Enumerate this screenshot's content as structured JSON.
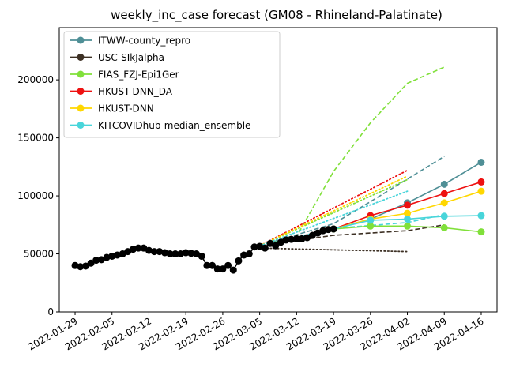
{
  "chart_data": {
    "type": "line",
    "title": "weekly_inc_case forecast (GM08 - Rhineland-Palatinate)",
    "xlabel": "",
    "ylabel": "",
    "ylim": [
      0,
      245000
    ],
    "xlim": [
      "2022-01-26",
      "2022-04-19"
    ],
    "x_ticks": [
      "2022-01-29",
      "2022-02-05",
      "2022-02-12",
      "2022-02-19",
      "2022-02-26",
      "2022-03-05",
      "2022-03-12",
      "2022-03-19",
      "2022-03-26",
      "2022-04-02",
      "2022-04-09",
      "2022-04-16"
    ],
    "y_ticks": [
      0,
      50000,
      100000,
      150000,
      200000
    ],
    "y_tick_labels": [
      "0",
      "50000",
      "100000",
      "150000",
      "200000"
    ],
    "grid": false,
    "legend_position": "top-left",
    "observed": {
      "color": "#000000",
      "x": [
        "2022-01-29",
        "2022-01-30",
        "2022-01-31",
        "2022-02-01",
        "2022-02-02",
        "2022-02-03",
        "2022-02-04",
        "2022-02-05",
        "2022-02-06",
        "2022-02-07",
        "2022-02-08",
        "2022-02-09",
        "2022-02-10",
        "2022-02-11",
        "2022-02-12",
        "2022-02-13",
        "2022-02-14",
        "2022-02-15",
        "2022-02-16",
        "2022-02-17",
        "2022-02-18",
        "2022-02-19",
        "2022-02-20",
        "2022-02-21",
        "2022-02-22",
        "2022-02-23",
        "2022-02-24",
        "2022-02-25",
        "2022-02-26",
        "2022-02-27",
        "2022-02-28",
        "2022-03-01",
        "2022-03-02",
        "2022-03-03",
        "2022-03-04",
        "2022-03-05",
        "2022-03-06",
        "2022-03-07",
        "2022-03-08",
        "2022-03-09",
        "2022-03-10",
        "2022-03-11",
        "2022-03-12",
        "2022-03-13",
        "2022-03-14",
        "2022-03-15",
        "2022-03-16",
        "2022-03-17",
        "2022-03-18",
        "2022-03-19"
      ],
      "y": [
        40000,
        39000,
        39500,
        42000,
        44500,
        45000,
        47000,
        48000,
        49000,
        50000,
        52000,
        54000,
        55000,
        55000,
        53000,
        52000,
        52000,
        51000,
        50000,
        50000,
        50000,
        51000,
        50500,
        50000,
        48000,
        40000,
        40000,
        37000,
        37000,
        40000,
        36000,
        44000,
        49000,
        50000,
        56000,
        56500,
        55000,
        59000,
        57000,
        60000,
        62000,
        62500,
        63000,
        63000,
        64000,
        66000,
        68000,
        70000,
        71000,
        71500
      ]
    },
    "series": [
      {
        "name": "ITWW-county_repro",
        "color": "#4f8f96",
        "x": [
          "2022-03-19",
          "2022-03-26",
          "2022-04-02",
          "2022-04-09",
          "2022-04-16"
        ],
        "values": [
          71500,
          80000,
          94000,
          110000,
          129000
        ],
        "dashed": {
          "x": [
            "2022-03-05",
            "2022-03-19",
            "2022-03-26",
            "2022-04-09"
          ],
          "values": [
            57000,
            76000,
            95000,
            134000
          ]
        }
      },
      {
        "name": "USC-SIkJalpha",
        "color": "#3d3024",
        "x": [],
        "values": [],
        "dashed": {
          "x": [
            "2022-03-05",
            "2022-03-19",
            "2022-04-02",
            "2022-04-09"
          ],
          "values": [
            57000,
            66000,
            70000,
            75000
          ]
        },
        "dotted": {
          "x": [
            "2022-03-05",
            "2022-04-02"
          ],
          "values": [
            55000,
            52000
          ]
        }
      },
      {
        "name": "FIAS_FZJ-Epi1Ger",
        "color": "#80e03a",
        "x": [
          "2022-03-19",
          "2022-03-26",
          "2022-04-02",
          "2022-04-09",
          "2022-04-16"
        ],
        "values": [
          71500,
          74000,
          74000,
          72500,
          69000
        ],
        "dashed": {
          "x": [
            "2022-03-05",
            "2022-03-12",
            "2022-03-19",
            "2022-03-26",
            "2022-04-02",
            "2022-04-09"
          ],
          "values": [
            57000,
            65000,
            121000,
            163000,
            197000,
            211000
          ]
        },
        "dotted": {
          "x": [
            "2022-03-05",
            "2022-04-02"
          ],
          "values": [
            57000,
            114000
          ]
        }
      },
      {
        "name": "HKUST-DNN_DA",
        "color": "#ee1111",
        "x": [
          "2022-03-19",
          "2022-03-26",
          "2022-04-02",
          "2022-04-09",
          "2022-04-16"
        ],
        "values": [
          71500,
          83000,
          92000,
          102000,
          112000
        ],
        "dotted": {
          "x": [
            "2022-03-05",
            "2022-04-02"
          ],
          "values": [
            57000,
            122000
          ]
        }
      },
      {
        "name": "HKUST-DNN",
        "color": "#ffd700",
        "x": [
          "2022-03-19",
          "2022-03-26",
          "2022-04-02",
          "2022-04-09",
          "2022-04-16"
        ],
        "values": [
          71500,
          80000,
          85000,
          94000,
          104000
        ],
        "dotted": {
          "x": [
            "2022-03-05",
            "2022-04-02"
          ],
          "values": [
            57000,
            117000
          ]
        }
      },
      {
        "name": "KITCOVIDhub-median_ensemble",
        "color": "#48d5da",
        "x": [
          "2022-03-19",
          "2022-03-26",
          "2022-04-02",
          "2022-04-09",
          "2022-04-16"
        ],
        "values": [
          71500,
          79000,
          80000,
          82500,
          83000
        ],
        "dashed": {
          "x": [
            "2022-03-05",
            "2022-03-19",
            "2022-04-02",
            "2022-04-09"
          ],
          "values": [
            57000,
            72000,
            77000,
            84000
          ]
        },
        "dotted": {
          "x": [
            "2022-03-05",
            "2022-04-02"
          ],
          "values": [
            57000,
            104000
          ]
        }
      }
    ]
  }
}
